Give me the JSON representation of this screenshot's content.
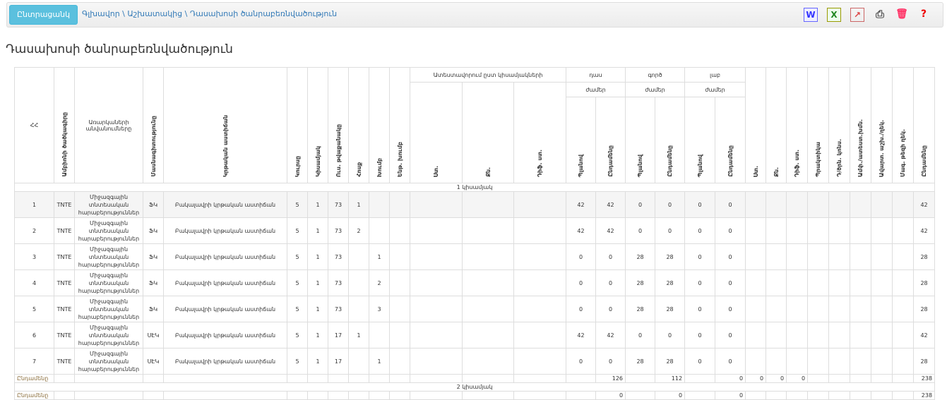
{
  "topbar": {
    "back_button": "Ընտրացանկ",
    "breadcrumb": "Գլխավոր \\ Աշխատակից \\ Դասախոսի ծանրաբեռնվածություն",
    "icons": [
      "word-export-icon",
      "excel-export-icon",
      "pdf-export-icon",
      "print-icon",
      "delete-icon",
      "help-icon"
    ]
  },
  "page_title": "Դասախոսի ծանրաբեռնվածություն",
  "headers": {
    "num": "ՀՀ",
    "dept_code": "Ամբիոնի ծածկագիրը",
    "subjects": "Առարկաների անվանումները",
    "specialty": "Մասնագիտությունը",
    "level": "Կրթական աստիճան",
    "course": "Կուրսը",
    "semester": "Կիսամյակ",
    "students": "Ուս. թվաքանակը",
    "stream": "Հոսք",
    "group": "Խումբ",
    "subgroup": "Ենթ. խումբ",
    "attestation": "Ատեստավորում ըստ կիսամյակների",
    "att_cols": [
      "Ստ.",
      "Քն.",
      "Դիֆ. ստ."
    ],
    "lecture": "դաս",
    "practical": "գործ",
    "lab": "լաբ",
    "hours": "ժամեր",
    "plan": "Պլանով",
    "total": "Ընդամենը",
    "right_cols": [
      "Ստ.",
      "Քն.",
      "Դիֆ. ստ.",
      "Պրակտիկա",
      "Դ/ծրն. կոնս.",
      "Ամփ./ատեստ.խմն.",
      "Ավարտ. աշխ./ղեկ.",
      "Մագ. թեզի ղեկ.",
      "Ընդամենը"
    ]
  },
  "semesters": [
    {
      "label": "1 կիսամյակ",
      "rows": [
        {
          "n": "1",
          "code": "TNTE",
          "subject": "Միջազգային տնտեսական հարաբերություններ",
          "spec": "ՖԿ",
          "level": "Բակալավրի կրթական աստիճան",
          "course": "5",
          "sem": "1",
          "students": "73",
          "stream": "1",
          "group": "",
          "lp": "42",
          "lt": "42",
          "pp": "0",
          "pt": "0",
          "bp": "0",
          "bt": "0",
          "total": "42"
        },
        {
          "n": "2",
          "code": "TNTE",
          "subject": "Միջազգային տնտեսական հարաբերություններ",
          "spec": "ՖԿ",
          "level": "Բակալավրի կրթական աստիճան",
          "course": "5",
          "sem": "1",
          "students": "73",
          "stream": "2",
          "group": "",
          "lp": "42",
          "lt": "42",
          "pp": "0",
          "pt": "0",
          "bp": "0",
          "bt": "0",
          "total": "42"
        },
        {
          "n": "3",
          "code": "TNTE",
          "subject": "Միջազգային տնտեսական հարաբերություններ",
          "spec": "ՖԿ",
          "level": "Բակալավրի կրթական աստիճան",
          "course": "5",
          "sem": "1",
          "students": "73",
          "stream": "",
          "group": "1",
          "lp": "0",
          "lt": "0",
          "pp": "28",
          "pt": "28",
          "bp": "0",
          "bt": "0",
          "total": "28"
        },
        {
          "n": "4",
          "code": "TNTE",
          "subject": "Միջազգային տնտեսական հարաբերություններ",
          "spec": "ՖԿ",
          "level": "Բակալավրի կրթական աստիճան",
          "course": "5",
          "sem": "1",
          "students": "73",
          "stream": "",
          "group": "2",
          "lp": "0",
          "lt": "0",
          "pp": "28",
          "pt": "28",
          "bp": "0",
          "bt": "0",
          "total": "28"
        },
        {
          "n": "5",
          "code": "TNTE",
          "subject": "Միջազգային տնտեսական հարաբերություններ",
          "spec": "ՖԿ",
          "level": "Բակալավրի կրթական աստիճան",
          "course": "5",
          "sem": "1",
          "students": "73",
          "stream": "",
          "group": "3",
          "lp": "0",
          "lt": "0",
          "pp": "28",
          "pt": "28",
          "bp": "0",
          "bt": "0",
          "total": "28"
        },
        {
          "n": "6",
          "code": "TNTE",
          "subject": "Միջազգային տնտեսական հարաբերություններ",
          "spec": "ՍԷԿ",
          "level": "Բակալավրի կրթական աստիճան",
          "course": "5",
          "sem": "1",
          "students": "17",
          "stream": "1",
          "group": "",
          "lp": "42",
          "lt": "42",
          "pp": "0",
          "pt": "0",
          "bp": "0",
          "bt": "0",
          "total": "42"
        },
        {
          "n": "7",
          "code": "TNTE",
          "subject": "Միջազգային տնտեսական հարաբերություններ",
          "spec": "ՍԷԿ",
          "level": "Բակալավրի կրթական աստիճան",
          "course": "5",
          "sem": "1",
          "students": "17",
          "stream": "",
          "group": "1",
          "lp": "0",
          "lt": "0",
          "pp": "28",
          "pt": "28",
          "bp": "0",
          "bt": "0",
          "total": "28"
        }
      ],
      "totals": {
        "label": "Ընդամենը",
        "lt": "126",
        "pt": "112",
        "bt": "0",
        "st": "0",
        "qn": "0",
        "dif": "0",
        "total": "238"
      }
    },
    {
      "label": "2 կիսամյակ",
      "rows": [],
      "totals": {
        "label": "Ընդամենը",
        "lt": "0",
        "pt": "0",
        "bt": "0",
        "st": "",
        "qn": "",
        "dif": "",
        "total": "238"
      }
    }
  ]
}
